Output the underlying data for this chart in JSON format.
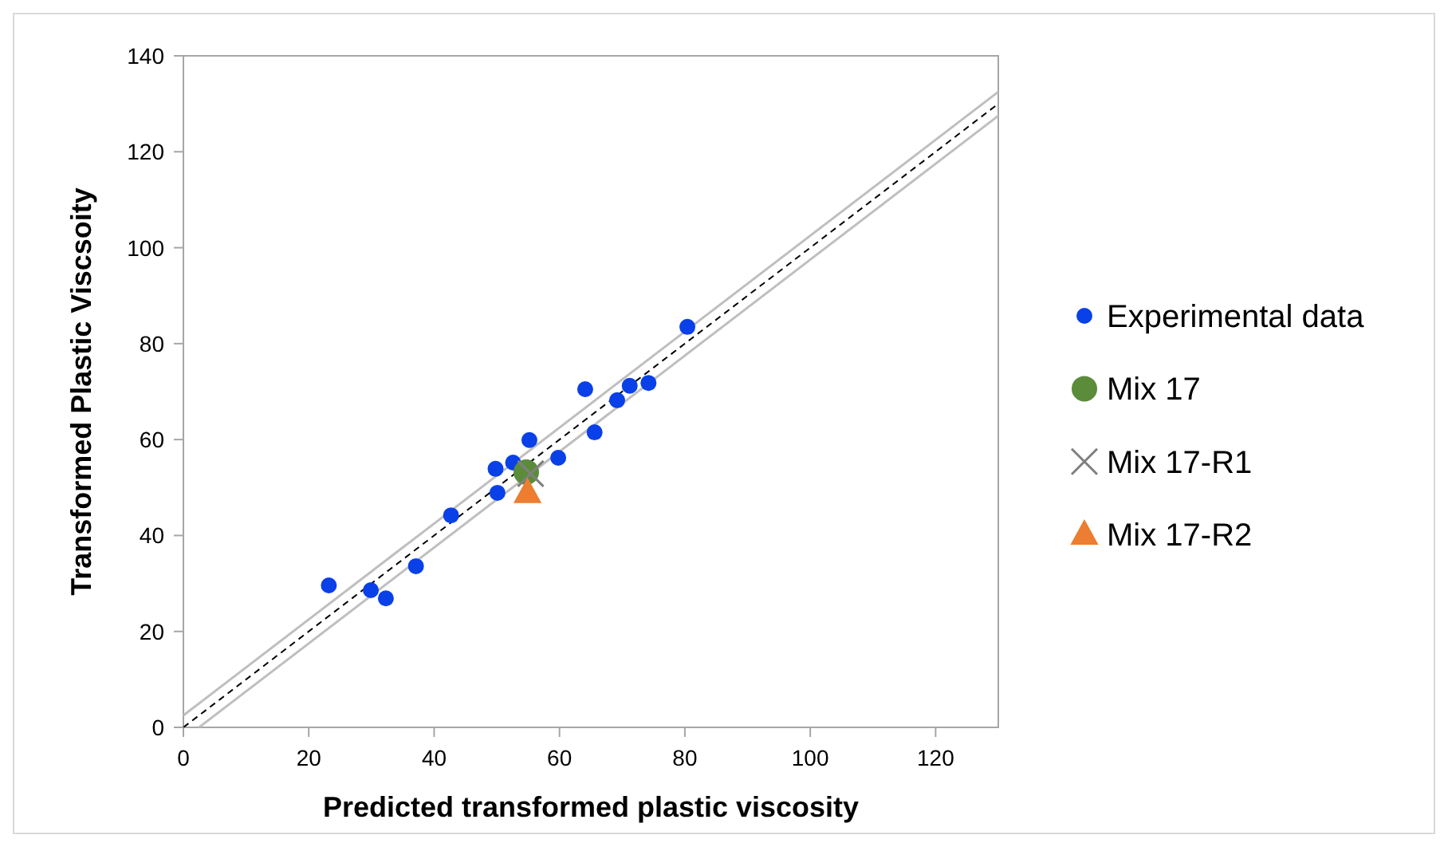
{
  "chart_data": {
    "type": "scatter",
    "xlabel": "Predicted transformed plastic viscosity",
    "ylabel": "Transformed Plastic Viscsoity",
    "xlim": [
      0,
      130
    ],
    "ylim": [
      0,
      140
    ],
    "xticks": [
      0,
      20,
      40,
      60,
      80,
      100,
      120
    ],
    "yticks": [
      0,
      20,
      40,
      60,
      80,
      100,
      120,
      140
    ],
    "grid": false,
    "legend": "right",
    "series": [
      {
        "type": "line",
        "color": "#bfbfbf",
        "line_style": "solid",
        "marker": "none",
        "x": [
          0,
          130
        ],
        "values": [
          2.5,
          132.5
        ]
      },
      {
        "type": "line",
        "color": "#bfbfbf",
        "line_style": "solid",
        "marker": "none",
        "x": [
          2.5,
          130
        ],
        "values": [
          0,
          127.5
        ]
      },
      {
        "type": "line",
        "color": "#000000",
        "line_style": "dashed",
        "marker": "none",
        "x": [
          0,
          130
        ],
        "values": [
          0,
          130
        ]
      },
      {
        "name": "Experimental data",
        "color": "#0a40e8",
        "marker": "circle",
        "x": [
          23.2,
          29.9,
          32.3,
          37.1,
          42.7,
          49.8,
          50.1,
          52.6,
          55.2,
          59.8,
          64.1,
          65.6,
          69.2,
          71.2,
          74.2,
          80.4
        ],
        "values": [
          29.6,
          28.6,
          26.9,
          33.6,
          44.2,
          53.9,
          48.9,
          55.2,
          59.9,
          56.2,
          70.5,
          61.5,
          68.2,
          71.2,
          71.8,
          83.5
        ]
      },
      {
        "name": "Mix 17",
        "color": "#5b8c3a",
        "marker": "circle",
        "x": [
          54.7
        ],
        "values": [
          53.2
        ]
      },
      {
        "name": "Mix 17-R1",
        "color": "#7f7f7f",
        "marker": "cross",
        "x": [
          55.4
        ],
        "values": [
          52.9
        ]
      },
      {
        "name": "Mix 17-R2",
        "color": "#ed7d31",
        "marker": "triangle",
        "x": [
          54.9
        ],
        "values": [
          48.9
        ]
      }
    ]
  }
}
